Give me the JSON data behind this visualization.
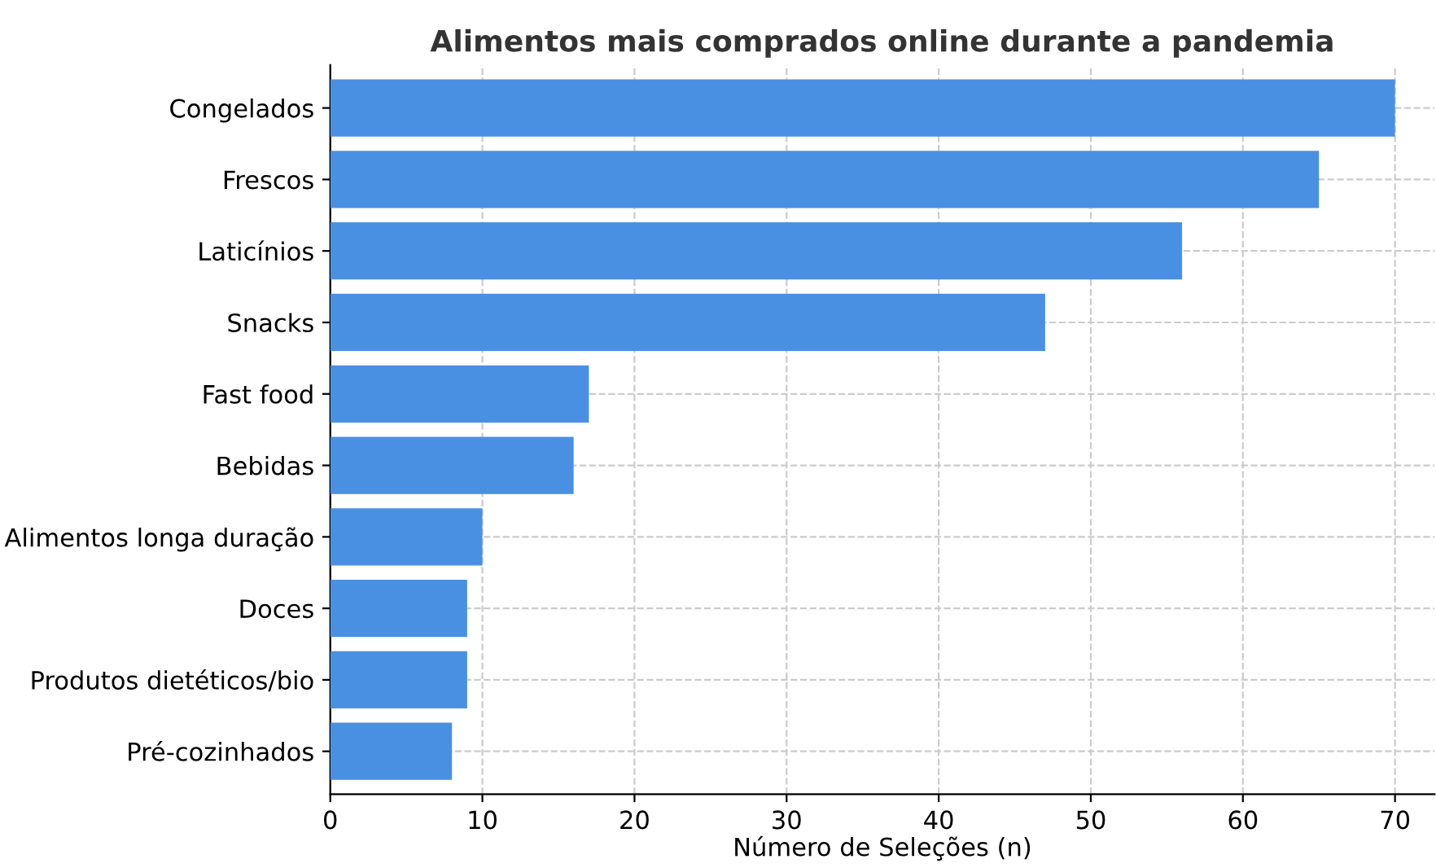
{
  "chart_data": {
    "type": "bar",
    "orientation": "horizontal",
    "title": "Alimentos mais comprados online durante a pandemia",
    "xlabel": "Número de Seleções (n)",
    "categories": [
      "Congelados",
      "Frescos",
      "Laticínios",
      "Snacks",
      "Fast food",
      "Bebidas",
      "Alimentos longa duração",
      "Doces",
      "Produtos dietéticos/bio",
      "Pré-cozinhados"
    ],
    "values": [
      70,
      65,
      56,
      47,
      17,
      16,
      10,
      9,
      9,
      8
    ],
    "color": "#4a90e2",
    "xlim": [
      0,
      72.6
    ],
    "xticks": [
      0,
      10,
      20,
      30,
      40,
      50,
      60,
      70
    ],
    "grid": true
  }
}
